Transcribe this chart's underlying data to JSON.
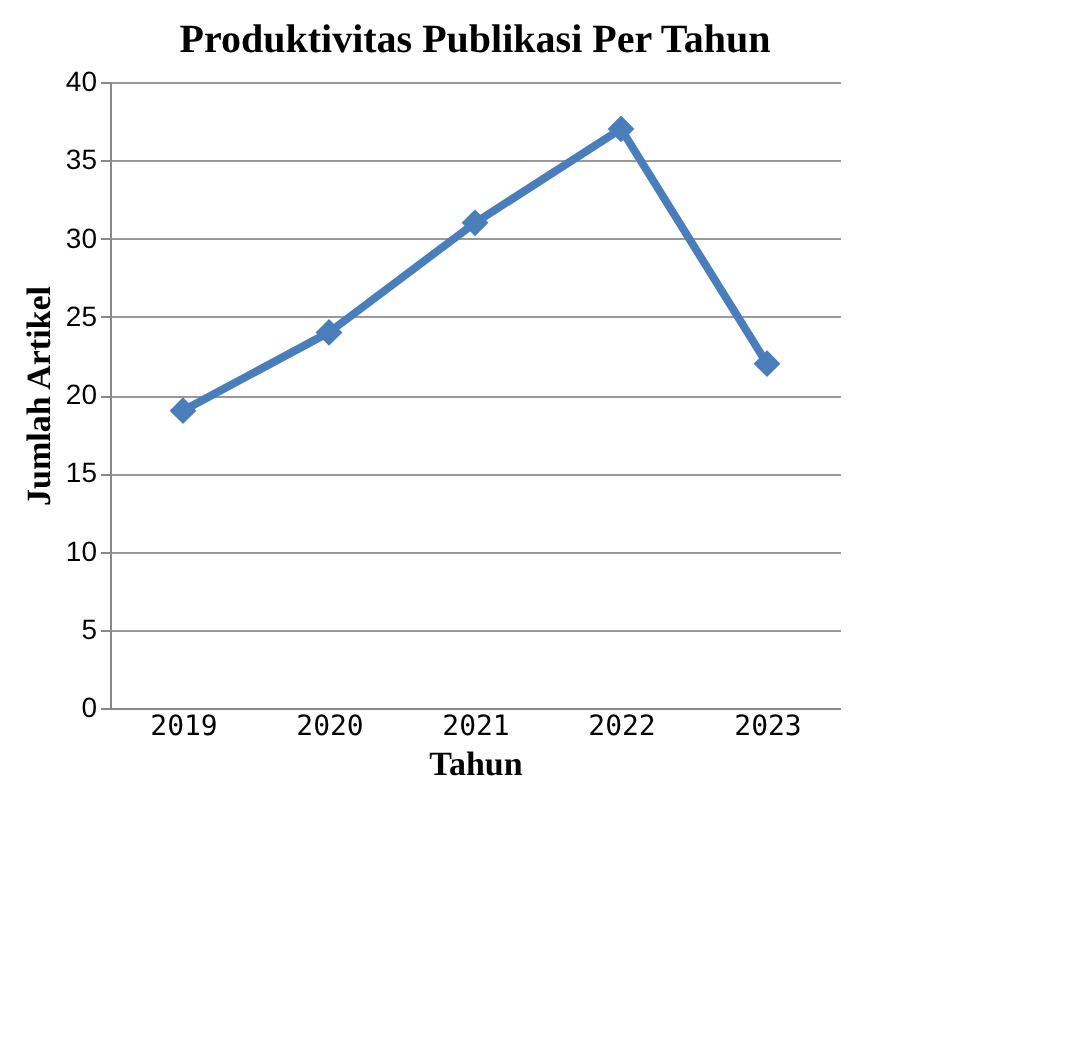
{
  "chart_data": {
    "type": "line",
    "title": "Produktivitas Publikasi Per Tahun",
    "xlabel": "Tahun",
    "ylabel": "Jumlah Artikel",
    "categories": [
      "2019",
      "2020",
      "2021",
      "2022",
      "2023"
    ],
    "series": [
      {
        "color": "#4a7ebb",
        "values": [
          19,
          24,
          31,
          37,
          22
        ]
      }
    ],
    "ylim": [
      0,
      40
    ],
    "yticks": [
      0,
      5,
      10,
      15,
      20,
      25,
      30,
      35,
      40
    ],
    "grid": "y",
    "marker": "diamond",
    "line_style": "solid",
    "legend": false
  }
}
